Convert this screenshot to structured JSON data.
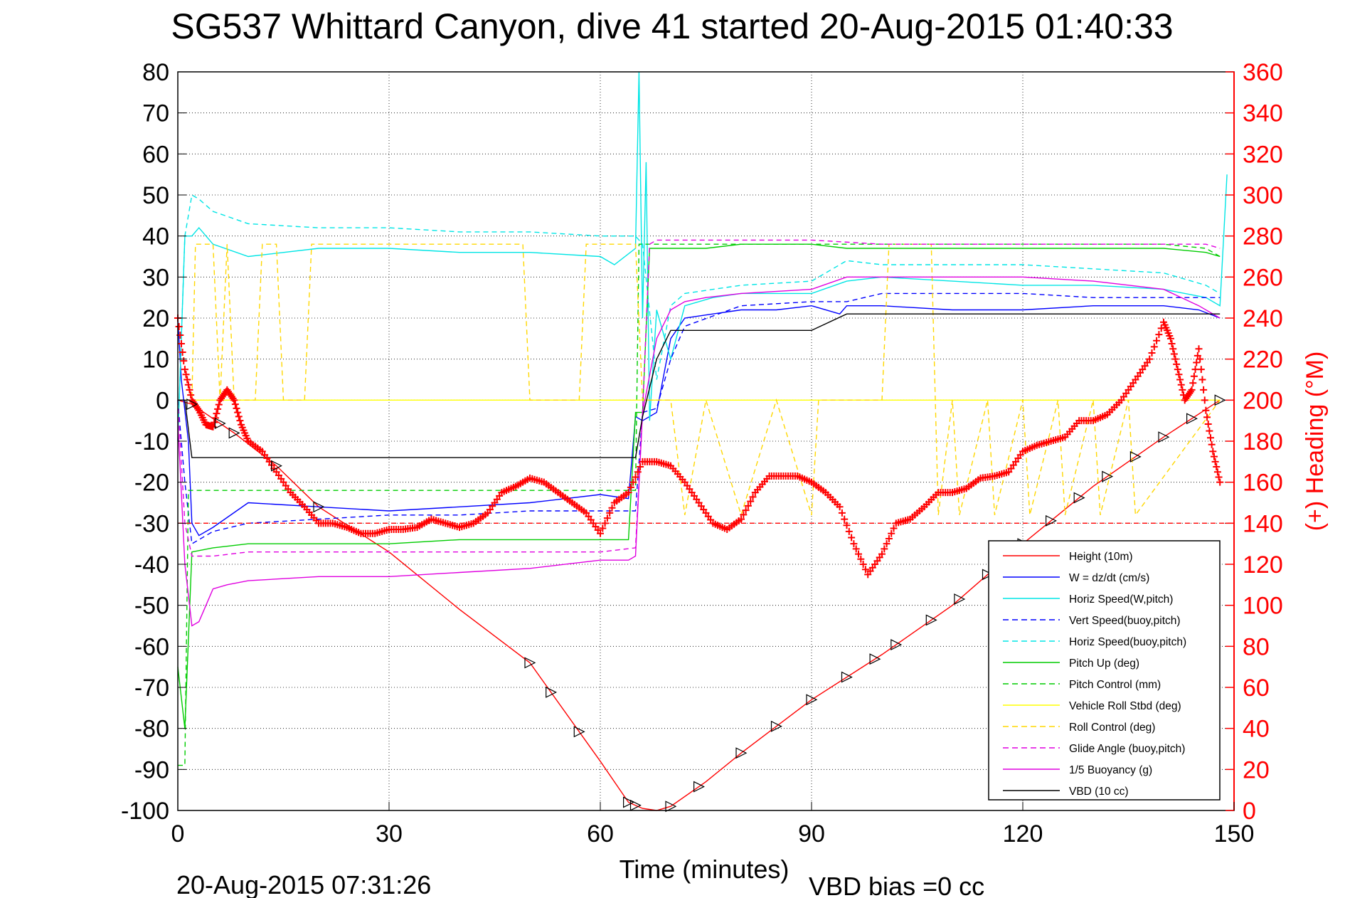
{
  "chart_data": {
    "type": "line",
    "title": "SG537 Whittard Canyon, dive 41 started 20-Aug-2015 01:40:33",
    "xlabel": "Time (minutes)",
    "ylabel_right": "(+) Heading (°M)",
    "footer_left": "20-Aug-2015 07:31:26",
    "footer_right": "VBD bias =0 cc",
    "xlim": [
      0,
      150
    ],
    "ylim": [
      -100,
      80
    ],
    "ylim_right": [
      0,
      360
    ],
    "x_ticks": [
      "0",
      "30",
      "60",
      "90",
      "120",
      "150"
    ],
    "y_ticks": [
      "80",
      "70",
      "60",
      "50",
      "40",
      "30",
      "20",
      "10",
      "0",
      "-10",
      "-20",
      "-30",
      "-40",
      "-50",
      "-60",
      "-70",
      "-80",
      "-90",
      "-100"
    ],
    "y_ticks_right": [
      "360",
      "340",
      "320",
      "300",
      "280",
      "260",
      "240",
      "220",
      "200",
      "180",
      "160",
      "140",
      "120",
      "100",
      "80",
      "60",
      "40",
      "20",
      "0"
    ],
    "grid": true,
    "legend_position": "lower-right",
    "series": [
      {
        "name": "Height (10m)",
        "color": "#ff0000",
        "style": "solid",
        "x": [
          0,
          2,
          8,
          14,
          20,
          30,
          40,
          50,
          60,
          64,
          66,
          68,
          70,
          75,
          80,
          90,
          100,
          110,
          120,
          130,
          140,
          148
        ],
        "y": [
          0,
          -1,
          -8,
          -16,
          -26,
          -37,
          -51,
          -64,
          -88,
          -98,
          -99.5,
          -100,
          -99,
          -93,
          -86,
          -73,
          -62,
          -50,
          -35,
          -21,
          -9,
          0
        ]
      },
      {
        "name": "W = dz/dt (cm/s)",
        "color": "#0000ff",
        "style": "solid",
        "x": [
          0,
          0.5,
          1.5,
          2,
          3,
          5,
          10,
          20,
          30,
          40,
          50,
          60,
          64,
          65,
          66,
          68,
          70,
          72,
          76,
          80,
          85,
          90,
          94,
          95,
          100,
          110,
          120,
          130,
          140,
          145,
          148
        ],
        "y": [
          20,
          5,
          -10,
          -30,
          -33,
          -31,
          -25,
          -26,
          -27,
          -26,
          -25,
          -23,
          -24,
          -4,
          -5,
          -3,
          15,
          20,
          21,
          22,
          22,
          23,
          21,
          23,
          23,
          22,
          22,
          23,
          23,
          22,
          20
        ]
      },
      {
        "name": "Horiz Speed(W,pitch)",
        "color": "#00e5e5",
        "style": "solid",
        "x": [
          0,
          1,
          2,
          3,
          5,
          10,
          20,
          30,
          40,
          50,
          60,
          62,
          65,
          65.5,
          66,
          66.5,
          67,
          68,
          70,
          72,
          76,
          80,
          90,
          95,
          100,
          110,
          120,
          130,
          140,
          146,
          148,
          149
        ],
        "y": [
          -10,
          40,
          40,
          42,
          38,
          35,
          37,
          37,
          36,
          36,
          35,
          33,
          37,
          80,
          20,
          58,
          -5,
          22,
          10,
          23,
          25,
          26,
          26,
          29,
          30,
          29,
          28,
          28,
          27,
          25,
          23,
          55
        ]
      },
      {
        "name": "Vert Speed(buoy,pitch)",
        "color": "#0000ff",
        "style": "dashed",
        "x": [
          0,
          1,
          2,
          5,
          10,
          20,
          30,
          40,
          50,
          60,
          65,
          66,
          68,
          70,
          72,
          80,
          90,
          95,
          100,
          110,
          120,
          130,
          140,
          148
        ],
        "y": [
          0,
          -20,
          -35,
          -32,
          -30,
          -29,
          -28,
          -28,
          -27,
          -27,
          -27,
          -3,
          -2,
          10,
          18,
          23,
          24,
          24,
          26,
          26,
          26,
          25,
          25,
          25
        ]
      },
      {
        "name": "Horiz Speed(buoy,pitch)",
        "color": "#00e5e5",
        "style": "dashed",
        "x": [
          0,
          1,
          2,
          3,
          5,
          10,
          20,
          30,
          40,
          50,
          60,
          65,
          66,
          68,
          70,
          72,
          80,
          90,
          95,
          100,
          110,
          120,
          130,
          140,
          146,
          148
        ],
        "y": [
          -10,
          40,
          50,
          49,
          46,
          43,
          42,
          42,
          41,
          41,
          40,
          40,
          38,
          5,
          23,
          26,
          28,
          29,
          34,
          33,
          33,
          33,
          32,
          31,
          28,
          26
        ]
      },
      {
        "name": "Pitch Up (deg)",
        "color": "#00cc00",
        "style": "solid",
        "x": [
          0,
          1,
          2,
          5,
          10,
          20,
          30,
          40,
          50,
          60,
          64,
          65,
          66,
          67,
          68,
          70,
          75,
          80,
          90,
          95,
          100,
          110,
          120,
          130,
          140,
          146,
          148
        ],
        "y": [
          -65,
          -80,
          -37,
          -36,
          -35,
          -35,
          -35,
          -34,
          -34,
          -34,
          -34,
          -3,
          -3,
          37,
          37,
          37,
          37,
          38,
          38,
          37,
          37,
          37,
          37,
          37,
          37,
          36,
          35
        ]
      },
      {
        "name": "Pitch Control (mm)",
        "color": "#00cc00",
        "style": "dashed",
        "x": [
          0,
          1,
          1.5,
          2,
          65,
          65.5,
          66,
          70,
          80,
          90,
          100,
          110,
          120,
          130,
          140,
          146,
          148
        ],
        "y": [
          -89,
          -89,
          -22,
          -22,
          -22,
          38,
          38,
          38,
          38,
          38,
          38,
          38,
          38,
          38,
          38,
          37,
          35
        ]
      },
      {
        "name": "Vehicle Roll Stbd (deg)",
        "color": "#ffff00",
        "style": "solid",
        "x": [
          0,
          2,
          60,
          70,
          100,
          148
        ],
        "y": [
          0,
          0,
          0,
          0,
          0,
          0
        ]
      },
      {
        "name": "Roll Control (deg)",
        "color": "#ffd700",
        "style": "dashed",
        "x": [
          0,
          2,
          2.5,
          5,
          6,
          7,
          8,
          11,
          12,
          14,
          15,
          18,
          19,
          49,
          50,
          57,
          58,
          65,
          66,
          70,
          72,
          75,
          80,
          85,
          90,
          91,
          92,
          100,
          101,
          107,
          108,
          110,
          111,
          115,
          116,
          120,
          121,
          125,
          126,
          130,
          131,
          135,
          136,
          148
        ],
        "y": [
          0,
          0,
          38,
          38,
          0,
          38,
          0,
          0,
          38,
          38,
          0,
          0,
          38,
          38,
          0,
          0,
          38,
          38,
          0,
          0,
          -28,
          0,
          -28,
          0,
          -28,
          0,
          0,
          0,
          38,
          38,
          -28,
          0,
          -28,
          0,
          -28,
          0,
          -28,
          0,
          -28,
          0,
          -28,
          0,
          -28,
          0
        ]
      },
      {
        "name": "Glide Angle (buoy,pitch)",
        "color": "#e000e0",
        "style": "dashed",
        "x": [
          0,
          1,
          2,
          5,
          10,
          20,
          30,
          40,
          50,
          60,
          65,
          66,
          67,
          68,
          70,
          80,
          90,
          100,
          110,
          120,
          130,
          140,
          146,
          148
        ],
        "y": [
          0,
          -30,
          -38,
          -38,
          -37,
          -37,
          -37,
          -37,
          -37,
          -37,
          -36,
          -3,
          38,
          39,
          39,
          39,
          39,
          38,
          38,
          38,
          38,
          38,
          38,
          37
        ]
      },
      {
        "name": "1/5 Buoyancy (g)",
        "color": "#e000e0",
        "style": "solid",
        "x": [
          0,
          1,
          2,
          3,
          4,
          5,
          7,
          10,
          20,
          30,
          40,
          50,
          60,
          64,
          65,
          66,
          68,
          70,
          72,
          75,
          80,
          90,
          95,
          100,
          110,
          120,
          130,
          140,
          145,
          148
        ],
        "y": [
          -5,
          -40,
          -55,
          -54,
          -50,
          -46,
          -45,
          -44,
          -43,
          -43,
          -42,
          -41,
          -39,
          -39,
          -38,
          -3,
          15,
          22,
          24,
          25,
          26,
          27,
          30,
          30,
          30,
          30,
          29,
          27,
          23,
          20
        ]
      },
      {
        "name": "VBD (10 cc)",
        "color": "#000000",
        "style": "solid",
        "x": [
          0,
          1,
          2,
          64,
          65,
          66,
          68,
          70,
          72,
          75,
          80,
          90,
          95,
          100,
          110,
          120,
          130,
          140,
          148
        ],
        "y": [
          0,
          0,
          -14,
          -14,
          -14,
          -4,
          10,
          17,
          17,
          17,
          17,
          17,
          21,
          21,
          21,
          21,
          21,
          21,
          21
        ]
      },
      {
        "name": "(+) Heading (°M)",
        "color": "#ff0000",
        "style": "markers",
        "axis": "right",
        "x": [
          0,
          1,
          2,
          3,
          4,
          5,
          6,
          7,
          8,
          9,
          10,
          12,
          14,
          16,
          18,
          20,
          22,
          24,
          26,
          28,
          30,
          32,
          34,
          36,
          38,
          40,
          42,
          44,
          46,
          48,
          50,
          52,
          54,
          56,
          58,
          60,
          62,
          64,
          66,
          68,
          70,
          72,
          74,
          76,
          78,
          80,
          82,
          84,
          86,
          88,
          90,
          92,
          94,
          96,
          98,
          100,
          102,
          104,
          106,
          108,
          110,
          112,
          114,
          116,
          118,
          120,
          122,
          124,
          126,
          128,
          130,
          132,
          134,
          136,
          138,
          140,
          141,
          142,
          143,
          144,
          145,
          146,
          147,
          148
        ],
        "y": [
          240,
          215,
          200,
          195,
          188,
          187,
          200,
          205,
          200,
          188,
          180,
          175,
          165,
          155,
          148,
          140,
          140,
          138,
          135,
          135,
          137,
          137,
          138,
          142,
          140,
          138,
          140,
          145,
          155,
          158,
          162,
          160,
          155,
          150,
          145,
          135,
          150,
          155,
          170,
          170,
          168,
          160,
          150,
          140,
          137,
          142,
          155,
          163,
          163,
          163,
          160,
          155,
          148,
          130,
          115,
          125,
          140,
          142,
          148,
          155,
          155,
          157,
          162,
          163,
          165,
          175,
          178,
          180,
          182,
          190,
          190,
          193,
          200,
          210,
          220,
          238,
          230,
          215,
          200,
          205,
          225,
          195,
          175,
          160
        ]
      },
      {
        "name": "",
        "color": "#ff0000",
        "style": "dashed",
        "axis": "right",
        "x": [
          0,
          150
        ],
        "y": [
          140,
          140
        ]
      }
    ],
    "legend": [
      "Height (10m)",
      "W = dz/dt (cm/s)",
      "Horiz Speed(W,pitch)",
      "Vert Speed(buoy,pitch)",
      "Horiz Speed(buoy,pitch)",
      "Pitch Up (deg)",
      "Pitch Control (mm)",
      "Vehicle Roll Stbd (deg)",
      "Roll Control (deg)",
      "Glide Angle (buoy,pitch)",
      "1/5 Buoyancy (g)",
      "VBD (10 cc)"
    ]
  }
}
